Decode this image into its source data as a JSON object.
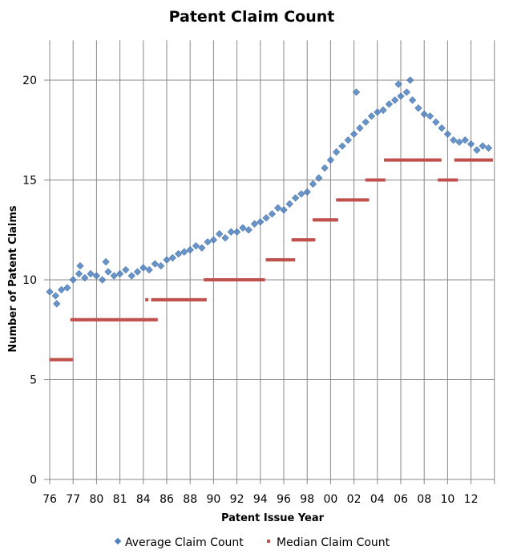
{
  "chart_data": {
    "type": "scatter",
    "title": "Patent Claim Count",
    "xlabel": "Patent Issue Year",
    "ylabel": "Number of Patent Claims",
    "ylim": [
      0,
      22
    ],
    "yticks": [
      "0",
      "5",
      "10",
      "15",
      "20"
    ],
    "ytick_values": [
      0,
      5,
      10,
      15,
      20
    ],
    "xlim": [
      0,
      19
    ],
    "xtick_labels": [
      "76",
      "77",
      "80",
      "81",
      "84",
      "86",
      "88",
      "90",
      "92",
      "94",
      "96",
      "98",
      "00",
      "02",
      "04",
      "06",
      "08",
      "10",
      "12"
    ],
    "grid": true,
    "legend_position": "bottom",
    "series": [
      {
        "name": "Average Claim Count",
        "color": "#4f81bd",
        "marker": "diamond",
        "x": [
          0,
          0.25,
          0.5,
          0.75,
          1,
          1.25,
          1.5,
          1.75,
          2,
          2.25,
          2.5,
          2.75,
          3,
          3.25,
          3.5,
          3.75,
          4,
          4.25,
          4.5,
          4.75,
          5,
          5.25,
          5.5,
          5.75,
          6,
          6.25,
          6.5,
          6.75,
          7,
          7.25,
          7.5,
          7.75,
          8,
          8.25,
          8.5,
          8.75,
          9,
          9.25,
          9.5,
          9.75,
          10,
          10.25,
          10.5,
          10.75,
          11,
          11.25,
          11.5,
          11.75,
          12,
          12.25,
          12.5,
          12.75,
          13,
          13.25,
          13.5,
          13.75,
          14,
          14.25,
          14.5,
          14.75,
          15,
          15.25,
          15.5,
          15.75,
          16,
          16.25,
          16.5,
          16.75,
          17,
          17.25,
          17.5,
          17.75,
          18,
          18.25,
          18.5,
          18.75,
          13.1,
          14.9,
          15.4,
          0.3,
          1.3,
          2.4
        ],
        "y": [
          9.4,
          9.2,
          9.5,
          9.6,
          10.0,
          10.3,
          10.1,
          10.3,
          10.2,
          10.0,
          10.4,
          10.2,
          10.3,
          10.5,
          10.2,
          10.4,
          10.6,
          10.5,
          10.8,
          10.7,
          11.0,
          11.1,
          11.3,
          11.4,
          11.5,
          11.7,
          11.6,
          11.9,
          12.0,
          12.3,
          12.1,
          12.4,
          12.4,
          12.6,
          12.5,
          12.8,
          12.9,
          13.1,
          13.3,
          13.6,
          13.5,
          13.8,
          14.1,
          14.3,
          14.4,
          14.8,
          15.1,
          15.6,
          16.0,
          16.4,
          16.7,
          17.0,
          17.3,
          17.6,
          17.9,
          18.2,
          18.4,
          18.5,
          18.8,
          19.0,
          19.2,
          19.4,
          19.0,
          18.6,
          18.3,
          18.2,
          17.9,
          17.6,
          17.3,
          17.0,
          16.9,
          17.0,
          16.8,
          16.5,
          16.7,
          16.6,
          19.4,
          19.8,
          20.0,
          8.8,
          10.7,
          10.9
        ]
      },
      {
        "name": "Median Claim Count",
        "color": "#c0504d",
        "marker": "square",
        "segments": [
          {
            "value": 6,
            "start": 0.05,
            "end": 0.95
          },
          {
            "value": 8,
            "start": 0.95,
            "end": 4.6
          },
          {
            "value": 9,
            "start": 4.15,
            "end": 4.15
          },
          {
            "value": 9,
            "start": 4.4,
            "end": 6.7
          },
          {
            "value": 10,
            "start": 6.65,
            "end": 9.2
          },
          {
            "value": 11,
            "start": 9.3,
            "end": 10.45
          },
          {
            "value": 12,
            "start": 10.4,
            "end": 11.3
          },
          {
            "value": 13,
            "start": 11.3,
            "end": 12.3
          },
          {
            "value": 14,
            "start": 12.3,
            "end": 13.6
          },
          {
            "value": 15,
            "start": 13.55,
            "end": 14.3
          },
          {
            "value": 16,
            "start": 14.35,
            "end": 16.7
          },
          {
            "value": 15,
            "start": 16.65,
            "end": 17.4
          },
          {
            "value": 16,
            "start": 17.35,
            "end": 18.9
          }
        ]
      }
    ]
  }
}
